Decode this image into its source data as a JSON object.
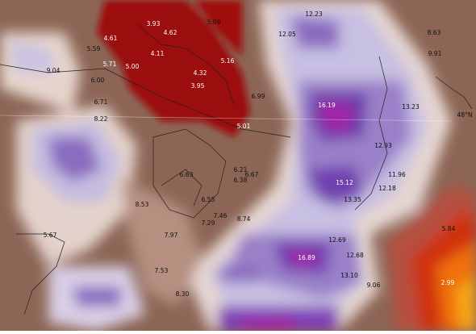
{
  "map": {
    "labels": [
      "3.93",
      "4.62",
      "5.09",
      "4.61",
      "5.59",
      "4.11",
      "5.71",
      "5.00",
      "9.04",
      "4.32",
      "5.16",
      "6.00",
      "3.95",
      "6.99",
      "6.71",
      "8.22",
      "5.01",
      "12.23",
      "12.05",
      "8.63",
      "9.91",
      "16.19",
      "13.23",
      "12.93",
      "6.63",
      "6.21",
      "6.67",
      "6.38",
      "11.96",
      "15.12",
      "12.18",
      "13.35",
      "6.55",
      "8.53",
      "7.46",
      "7.29",
      "8.74",
      "5.84",
      "5.67",
      "7.97",
      "12.69",
      "16.89",
      "12.68",
      "7.53",
      "13.10",
      "9.06",
      "2.99",
      "8.30"
    ],
    "latitude_label": "48°N"
  }
}
